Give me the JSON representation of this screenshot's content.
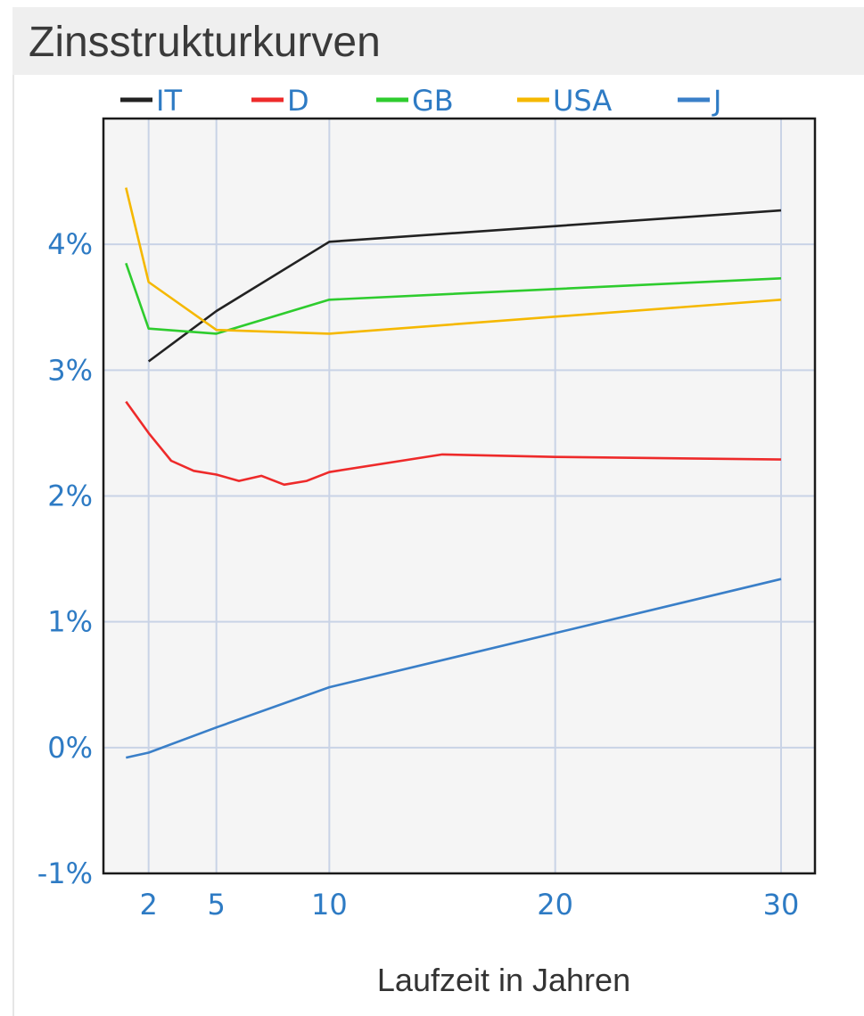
{
  "header": {
    "title": "Zinsstrukturkurven"
  },
  "chart_data": {
    "type": "line",
    "xlabel": "Laufzeit in Jahren",
    "ylabel": "",
    "xlim": [
      0,
      31.5
    ],
    "ylim": [
      -1,
      5
    ],
    "xticks": [
      2,
      5,
      10,
      20,
      30
    ],
    "xtick_labels": [
      "2",
      "5",
      "10",
      "20",
      "30"
    ],
    "yticks": [
      -1,
      0,
      1,
      2,
      3,
      4
    ],
    "ytick_labels": [
      "-1%",
      "0%",
      "1%",
      "2%",
      "3%",
      "4%"
    ],
    "grid": true,
    "legend_position": "top",
    "series": [
      {
        "name": "IT",
        "color": "#222222",
        "x": [
          2,
          5,
          10,
          30
        ],
        "y": [
          3.07,
          3.47,
          4.02,
          4.27
        ]
      },
      {
        "name": "D",
        "color": "#ee2a2a",
        "x": [
          1,
          2,
          3,
          4,
          5,
          6,
          7,
          8,
          9,
          10,
          15,
          20,
          30
        ],
        "y": [
          2.75,
          2.5,
          2.28,
          2.2,
          2.17,
          2.12,
          2.16,
          2.09,
          2.12,
          2.19,
          2.33,
          2.31,
          2.29
        ]
      },
      {
        "name": "GB",
        "color": "#2ecc2e",
        "x": [
          1,
          2,
          5,
          10,
          30
        ],
        "y": [
          3.85,
          3.33,
          3.29,
          3.56,
          3.73
        ]
      },
      {
        "name": "USA",
        "color": "#f5b800",
        "x": [
          1,
          2,
          5,
          10,
          30
        ],
        "y": [
          4.45,
          3.7,
          3.32,
          3.29,
          3.56
        ]
      },
      {
        "name": "J",
        "color": "#3a7fc8",
        "x": [
          1,
          2,
          5,
          10,
          30
        ],
        "y": [
          -0.08,
          -0.04,
          0.16,
          0.48,
          1.34
        ]
      }
    ]
  }
}
